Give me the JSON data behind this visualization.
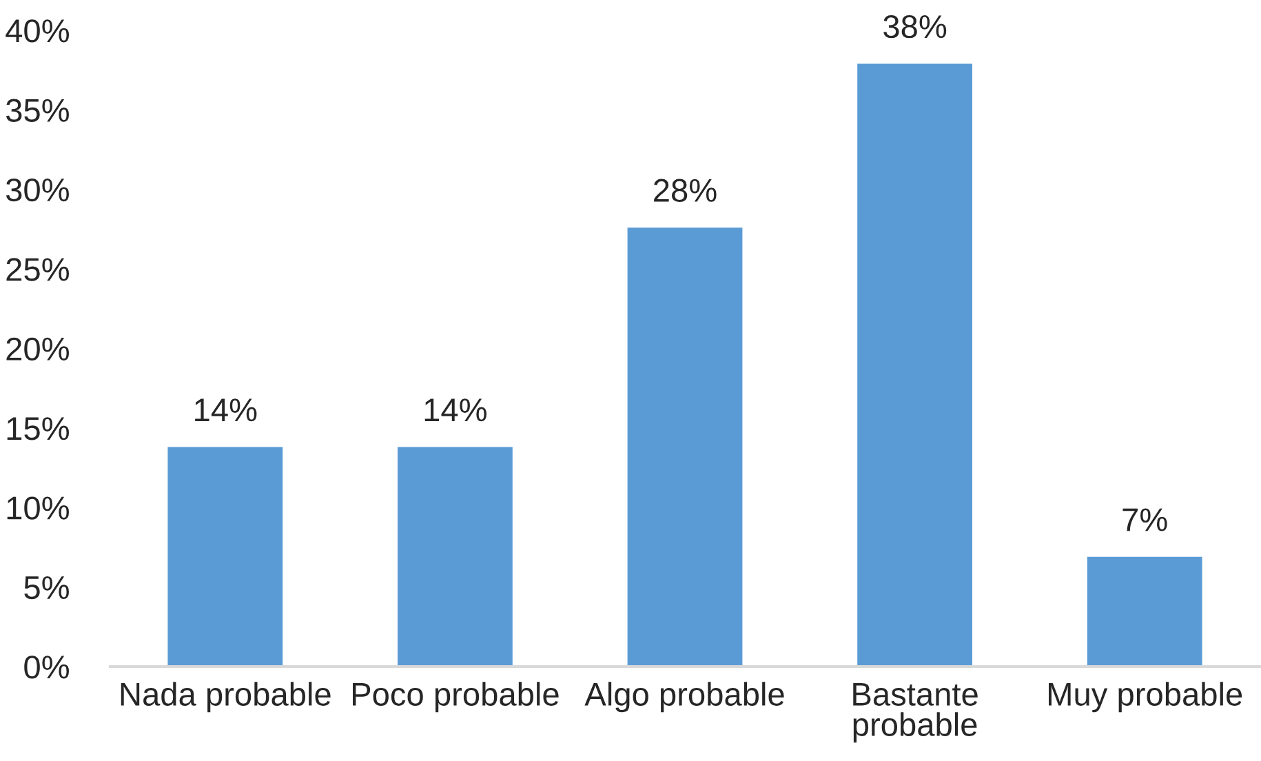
{
  "chart_data": {
    "type": "bar",
    "categories": [
      "Nada probable",
      "Poco probable",
      "Algo probable",
      "Bastante probable",
      "Muy probable"
    ],
    "values": [
      13.8,
      13.8,
      27.6,
      37.9,
      6.9
    ],
    "color": "#5b9bd5",
    "value_labels": [
      "14%",
      "14%",
      "28%",
      "38%",
      "7%"
    ],
    "ylim": [
      0,
      40
    ],
    "yticks": [
      {
        "value": 0,
        "label": "0%"
      },
      {
        "value": 5,
        "label": "5%"
      },
      {
        "value": 10,
        "label": "10%"
      },
      {
        "value": 15,
        "label": "15%"
      },
      {
        "value": 20,
        "label": "20%"
      },
      {
        "value": 25,
        "label": "25%"
      },
      {
        "value": 30,
        "label": "30%"
      },
      {
        "value": 35,
        "label": "35%"
      },
      {
        "value": 40,
        "label": "40%"
      }
    ]
  }
}
